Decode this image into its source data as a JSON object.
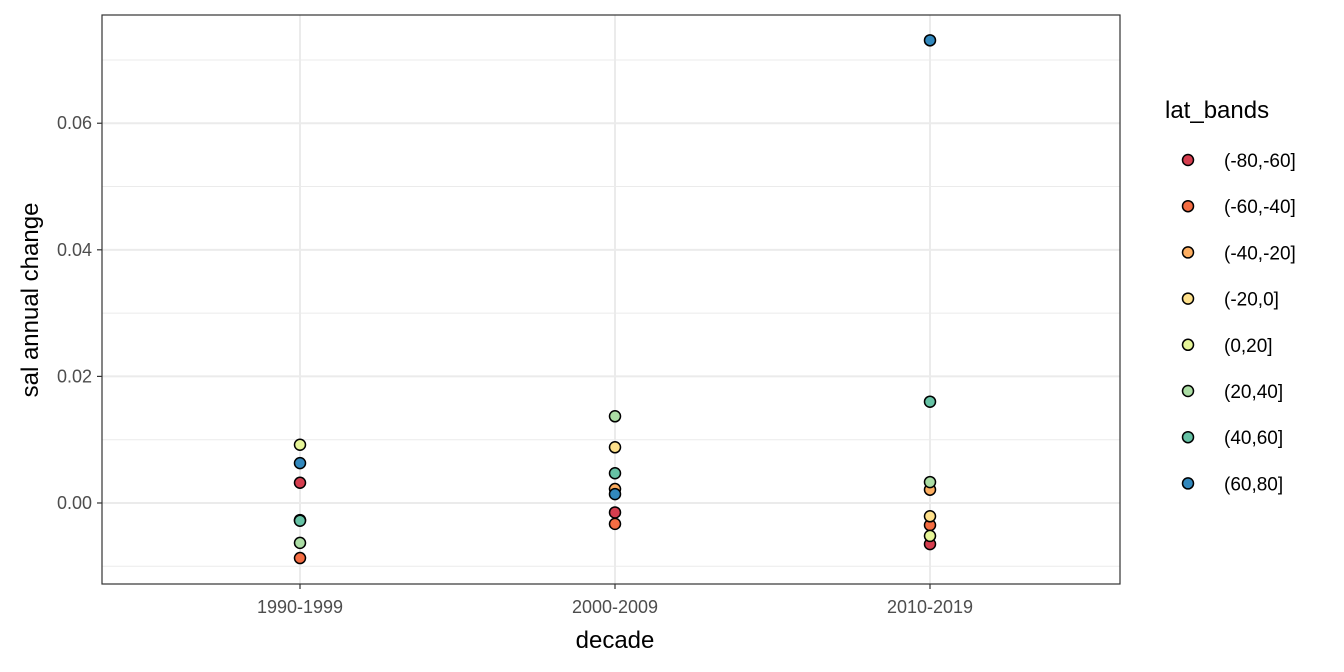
{
  "chart_data": {
    "type": "scatter",
    "xlabel": "decade",
    "ylabel": "sal annual change",
    "categories": [
      "1990-1999",
      "2000-2009",
      "2010-2019"
    ],
    "ylim": [
      -0.0128,
      0.0771
    ],
    "yticks": [
      0.0,
      0.02,
      0.04,
      0.06
    ],
    "ytick_labels": [
      "0.00",
      "0.02",
      "0.04",
      "0.06"
    ],
    "grid": true,
    "legend": {
      "title": "lat_bands",
      "placement": "right",
      "entries": [
        "(-80,-60]",
        "(-60,-40]",
        "(-40,-20]",
        "(-20,0]",
        "(0,20]",
        "(20,40]",
        "(40,60]",
        "(60,80]"
      ],
      "colors": [
        "#D53E4F",
        "#F46D43",
        "#FDAE61",
        "#FEE08B",
        "#E6F598",
        "#ABDDA4",
        "#66C2A5",
        "#3288BD"
      ]
    },
    "series": [
      {
        "name": "(-80,-60]",
        "values": [
          0.0032,
          -0.0015,
          -0.0065
        ]
      },
      {
        "name": "(-60,-40]",
        "values": [
          -0.0087,
          -0.0033,
          -0.0035
        ]
      },
      {
        "name": "(-40,-20]",
        "values": [
          -0.0027,
          0.0022,
          0.0021
        ]
      },
      {
        "name": "(-20,0]",
        "values": [
          null,
          0.0088,
          -0.0021
        ]
      },
      {
        "name": "(0,20]",
        "values": [
          0.0092,
          null,
          -0.0052
        ]
      },
      {
        "name": "(20,40]",
        "values": [
          -0.0063,
          0.0137,
          0.0033
        ]
      },
      {
        "name": "(40,60]",
        "values": [
          -0.0028,
          0.0047,
          0.016
        ]
      },
      {
        "name": "(60,80]",
        "values": [
          0.0063,
          0.0014,
          0.0731
        ]
      }
    ]
  }
}
